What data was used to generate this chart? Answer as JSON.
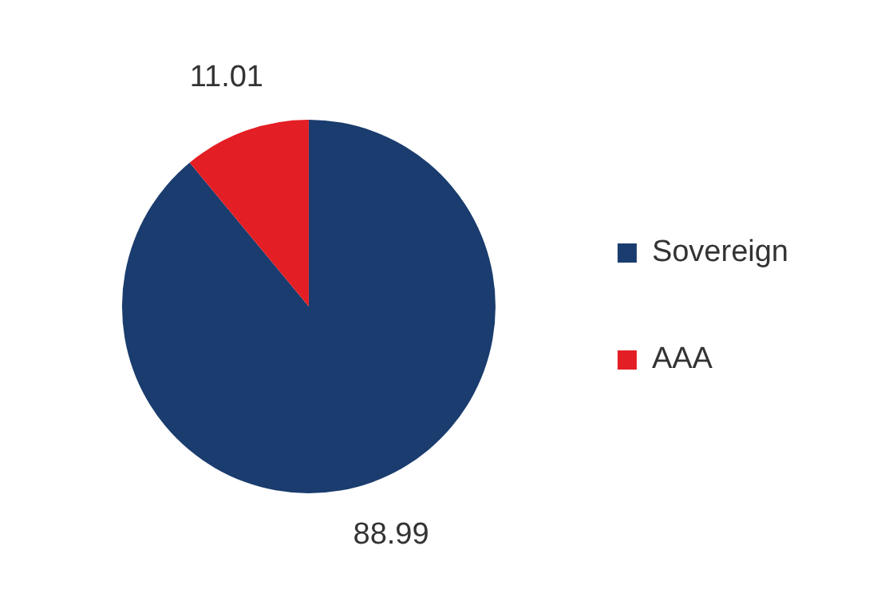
{
  "chart_data": {
    "type": "pie",
    "categories": [
      "Sovereign",
      "AAA"
    ],
    "values": [
      88.99,
      11.01
    ],
    "colors": [
      "#1a3c6e",
      "#e31e24"
    ],
    "legend": "right",
    "data_labels": true
  }
}
